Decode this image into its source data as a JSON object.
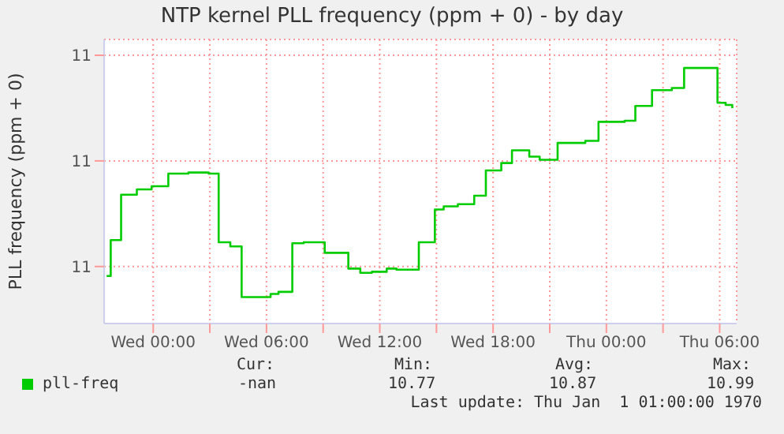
{
  "chart_data": {
    "type": "step",
    "title": "NTP kernel PLL frequency (ppm + 0) - by day",
    "ylabel": "PLL frequency (ppm + 0)",
    "x": [
      "--01-01T21:32",
      "--01-01T21:45",
      "--01-01T22:18",
      "--01-01T23:08",
      "--01-01T23:55",
      "--01-02T00:48",
      "--01-02T01:52",
      "--01-02T02:56",
      "--01-02T03:28",
      "--01-02T04:05",
      "--01-02T04:41",
      "--01-02T06:13",
      "--01-02T06:38",
      "--01-02T07:22",
      "--01-02T07:58",
      "--01-02T09:05",
      "--01-02T10:20",
      "--01-02T10:58",
      "--01-02T11:35",
      "--01-02T12:22",
      "--01-02T12:53",
      "--01-02T14:04",
      "--01-02T14:55",
      "--01-02T15:23",
      "--01-02T16:08",
      "--01-02T17:00",
      "--01-02T17:37",
      "--01-02T18:26",
      "--01-02T19:00",
      "--01-02T19:55",
      "--01-02T20:28",
      "--01-02T21:25",
      "--01-02T22:53",
      "--01-02T23:35",
      "--01-03T00:58",
      "--01-03T01:32",
      "--01-03T02:25",
      "--01-03T03:28",
      "--01-03T04:07",
      "--01-03T05:53",
      "--01-03T06:19",
      "--01-03T06:40"
    ],
    "series": [
      {
        "name": "pll-freq",
        "color": "#00cc00",
        "values": [
          10.791,
          10.825,
          10.868,
          10.873,
          10.876,
          10.888,
          10.889,
          10.888,
          10.823,
          10.819,
          10.771,
          10.774,
          10.776,
          10.822,
          10.823,
          10.813,
          10.798,
          10.794,
          10.795,
          10.798,
          10.797,
          10.823,
          10.854,
          10.857,
          10.859,
          10.867,
          10.891,
          10.898,
          10.91,
          10.904,
          10.901,
          10.917,
          10.919,
          10.937,
          10.938,
          10.952,
          10.967,
          10.969,
          10.988,
          10.955,
          10.953,
          10.95
        ]
      }
    ],
    "xlim": [
      "--01-01T21:24",
      "--01-03T06:54"
    ],
    "xticks": [
      {
        "value": "--01-02T00:00",
        "label": "Wed 00:00"
      },
      {
        "value": "--01-02T03:00",
        "label": null
      },
      {
        "value": "--01-02T06:00",
        "label": "Wed 06:00"
      },
      {
        "value": "--01-02T09:00",
        "label": null
      },
      {
        "value": "--01-02T12:00",
        "label": "Wed 12:00"
      },
      {
        "value": "--01-02T15:00",
        "label": null
      },
      {
        "value": "--01-02T18:00",
        "label": "Wed 18:00"
      },
      {
        "value": "--01-02T21:00",
        "label": null
      },
      {
        "value": "--01-03T00:00",
        "label": "Thu 00:00"
      },
      {
        "value": "--01-03T03:00",
        "label": null
      },
      {
        "value": "--01-03T06:00",
        "label": "Thu 06:00"
      }
    ],
    "ylim": [
      10.746,
      11.015
    ],
    "yticks": [
      {
        "value": 10.8,
        "label": "11"
      },
      {
        "value": 10.9,
        "label": "11"
      },
      {
        "value": 11.0,
        "label": "11"
      }
    ],
    "grid": true,
    "legend": "bottom",
    "annotations": [
      "Cur:",
      "Min:",
      "Avg:",
      "Max:",
      "-nan",
      "10.77",
      "10.87",
      "10.99",
      "Last update: Thu Jan  1 01:00:00 1970"
    ]
  }
}
